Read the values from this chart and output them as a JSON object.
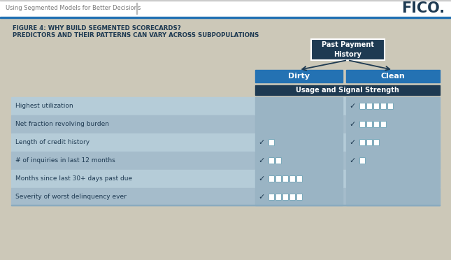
{
  "title_line1": "FIGURE 4: WHY BUILD SEGMENTED SCORECARDS?",
  "title_line2": "PREDICTORS AND THEIR PATTERNS CAN VARY ACROSS SUBPOPULATIONS",
  "header_box_label": "Past Payment\nHistory",
  "col_labels": [
    "Dirty",
    "Clean"
  ],
  "section_label": "Usage and Signal Strength",
  "rows": [
    "Highest utilization",
    "Net fraction revolving burden",
    "Length of credit history",
    "# of inquiries in last 12 months",
    "Months since last 30+ days past due",
    "Severity of worst delinquency ever"
  ],
  "dirty_boxes": [
    0,
    0,
    1,
    2,
    5,
    5
  ],
  "clean_boxes": [
    5,
    4,
    3,
    1,
    0,
    0
  ],
  "overall_bg": "#ccc8b8",
  "content_bg": "#ccc8b8",
  "header_bg": "#1e3a52",
  "col_header_bg": "#2472b3",
  "section_header_bg": "#1e3a52",
  "row_bg_light": "#b5ccd8",
  "row_bg_dark": "#a5bccb",
  "cell_bg": "#9ab4c4",
  "box_color": "#ffffff",
  "check_color": "#1e3a52",
  "topbar_bg": "#ffffff",
  "topbar_line": "#2472b3",
  "fico_color": "#1e3a52",
  "top_text": "Using Segmented Models for Better Decisions",
  "top_text_color": "#777777",
  "title_color": "#1e3a52",
  "arrow_color": "#1e3a52"
}
